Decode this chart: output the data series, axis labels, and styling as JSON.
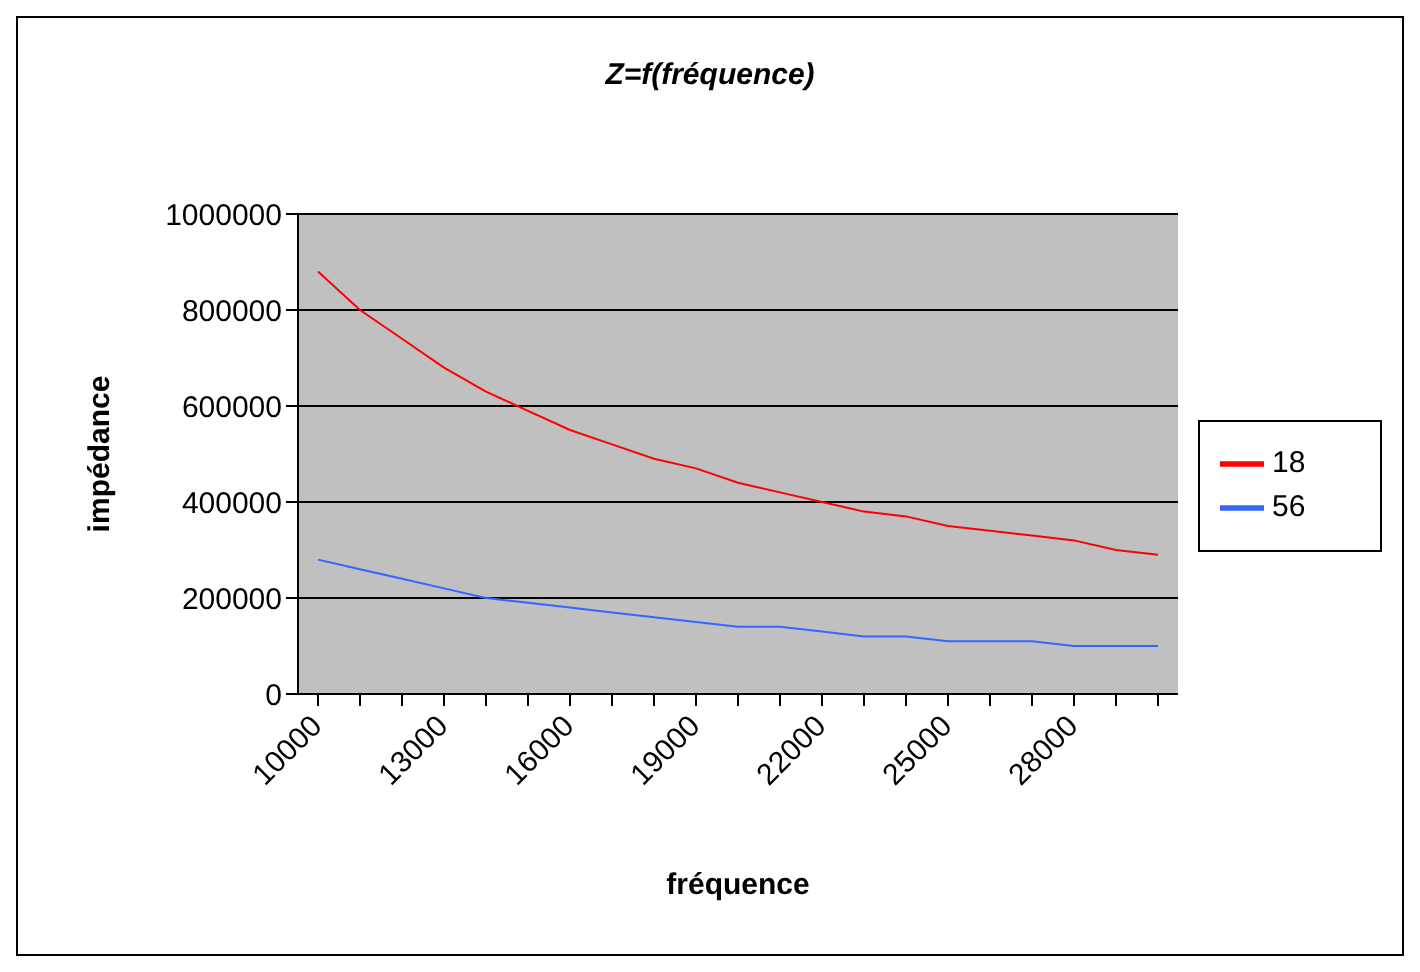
{
  "chart_data": {
    "type": "line",
    "title": "Z=f(fréquence)",
    "xlabel": "fréquence",
    "ylabel": "impédance",
    "categories": [
      "10000",
      null,
      null,
      "13000",
      null,
      null,
      "16000",
      null,
      null,
      "19000",
      null,
      null,
      "22000",
      null,
      null,
      "25000",
      null,
      null,
      "28000",
      null,
      null
    ],
    "series": [
      {
        "name": "18",
        "color": "#ff0000",
        "values": [
          880000,
          800000,
          740000,
          680000,
          630000,
          590000,
          550000,
          520000,
          490000,
          470000,
          440000,
          420000,
          400000,
          380000,
          370000,
          350000,
          340000,
          330000,
          320000,
          300000,
          290000
        ]
      },
      {
        "name": "56",
        "color": "#3366ff",
        "values": [
          280000,
          260000,
          240000,
          220000,
          200000,
          190000,
          180000,
          170000,
          160000,
          150000,
          140000,
          140000,
          130000,
          120000,
          120000,
          110000,
          110000,
          110000,
          100000,
          100000,
          100000
        ]
      }
    ],
    "ylim": [
      0,
      1000000
    ],
    "yticks": [
      0,
      200000,
      400000,
      600000,
      800000,
      1000000
    ],
    "grid": "y",
    "legend": "right",
    "marker": "none",
    "line_style": "solid"
  }
}
